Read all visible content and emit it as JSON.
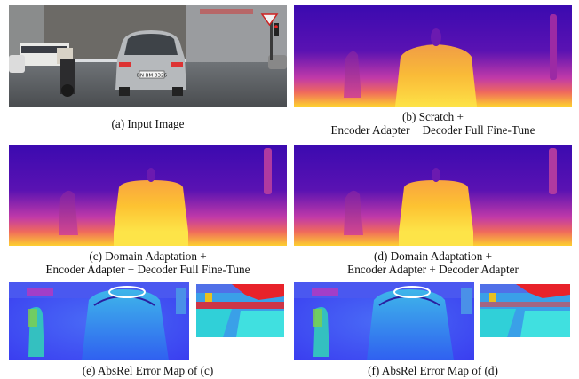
{
  "captions": {
    "a": {
      "line1": "(a) Input Image"
    },
    "b": {
      "line1": "(b) Scratch +",
      "line2": "Encoder Adapter + Decoder Full Fine-Tune"
    },
    "c": {
      "line1": "(c) Domain Adaptation +",
      "line2": "Encoder Adapter + Decoder Full Fine-Tune"
    },
    "d": {
      "line1": "(d) Domain Adaptation +",
      "line2": "Encoder Adapter + Decoder Adapter"
    },
    "e": {
      "line1": "(e) AbsRel Error Map of (c)"
    },
    "f": {
      "line1": "(f) AbsRel Error Map of (d)"
    }
  },
  "photo": {
    "license_plate": "BN BM 8326"
  },
  "colors": {
    "depth_far": "#3b0ab0",
    "depth_mid": "#c13aa8",
    "depth_near": "#fdd030",
    "error_low": "#3a3ef0",
    "error_high": "#e8222a",
    "highlight_ellipse": "#ffffff"
  }
}
